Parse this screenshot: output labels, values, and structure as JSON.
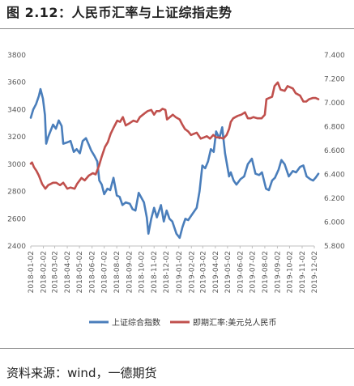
{
  "figure_title": "图 2.12：人民币汇率与上证综指走势",
  "source_note": "资料来源：wind，一德期货",
  "chart_data": {
    "type": "line",
    "title": "",
    "xlabel": "",
    "ylabel": "",
    "x_tick_labels": [
      "2018-01-02",
      "2018-02-02",
      "2018-03-02",
      "2018-04-02",
      "2018-05-02",
      "2018-06-02",
      "2018-07-02",
      "2018-08-02",
      "2018-09-02",
      "2018-10-02",
      "2018-11-02",
      "2018-12-02",
      "2019-01-02",
      "2019-02-02",
      "2019-03-02",
      "2019-04-02",
      "2019-05-02",
      "2019-06-02",
      "2019-07-02",
      "2019-08-02",
      "2019-09-02",
      "2019-10-02",
      "2019-11-02",
      "2019-12-02"
    ],
    "ylim_left": [
      2400,
      3800
    ],
    "ylim_right": [
      5.8,
      7.4
    ],
    "yticks_left": [
      "3800",
      "3600",
      "3400",
      "3200",
      "3000",
      "2800",
      "2600",
      "2400"
    ],
    "yticks_right": [
      "7.400",
      "7.200",
      "7.000",
      "6.800",
      "6.600",
      "6.400",
      "6.200",
      "6.000",
      "5.800"
    ],
    "grid": false,
    "legend_position": "bottom",
    "series": [
      {
        "name": "上证综合指数",
        "axis": "left",
        "color": "#4a7ebb",
        "points": [
          [
            "2018-01-02",
            3340
          ],
          [
            "2018-01-08",
            3400
          ],
          [
            "2018-01-15",
            3440
          ],
          [
            "2018-01-22",
            3500
          ],
          [
            "2018-01-26",
            3550
          ],
          [
            "2018-02-01",
            3480
          ],
          [
            "2018-02-06",
            3360
          ],
          [
            "2018-02-09",
            3150
          ],
          [
            "2018-02-14",
            3200
          ],
          [
            "2018-02-26",
            3290
          ],
          [
            "2018-03-05",
            3260
          ],
          [
            "2018-03-12",
            3320
          ],
          [
            "2018-03-19",
            3280
          ],
          [
            "2018-03-23",
            3150
          ],
          [
            "2018-04-02",
            3160
          ],
          [
            "2018-04-10",
            3170
          ],
          [
            "2018-04-18",
            3090
          ],
          [
            "2018-04-25",
            3110
          ],
          [
            "2018-05-03",
            3080
          ],
          [
            "2018-05-10",
            3170
          ],
          [
            "2018-05-18",
            3190
          ],
          [
            "2018-05-24",
            3150
          ],
          [
            "2018-05-31",
            3100
          ],
          [
            "2018-06-08",
            3060
          ],
          [
            "2018-06-15",
            3020
          ],
          [
            "2018-06-20",
            2880
          ],
          [
            "2018-06-26",
            2850
          ],
          [
            "2018-07-02",
            2780
          ],
          [
            "2018-07-10",
            2820
          ],
          [
            "2018-07-17",
            2810
          ],
          [
            "2018-07-25",
            2900
          ],
          [
            "2018-08-02",
            2770
          ],
          [
            "2018-08-09",
            2760
          ],
          [
            "2018-08-16",
            2700
          ],
          [
            "2018-08-24",
            2720
          ],
          [
            "2018-09-03",
            2710
          ],
          [
            "2018-09-10",
            2670
          ],
          [
            "2018-09-17",
            2660
          ],
          [
            "2018-09-25",
            2790
          ],
          [
            "2018-10-08",
            2720
          ],
          [
            "2018-10-15",
            2610
          ],
          [
            "2018-10-19",
            2490
          ],
          [
            "2018-10-26",
            2600
          ],
          [
            "2018-11-02",
            2680
          ],
          [
            "2018-11-09",
            2610
          ],
          [
            "2018-11-19",
            2700
          ],
          [
            "2018-11-26",
            2580
          ],
          [
            "2018-12-03",
            2660
          ],
          [
            "2018-12-10",
            2600
          ],
          [
            "2018-12-17",
            2580
          ],
          [
            "2018-12-27",
            2490
          ],
          [
            "2019-01-04",
            2460
          ],
          [
            "2019-01-11",
            2540
          ],
          [
            "2019-01-18",
            2600
          ],
          [
            "2019-01-25",
            2590
          ],
          [
            "2019-02-01",
            2620
          ],
          [
            "2019-02-15",
            2680
          ],
          [
            "2019-02-22",
            2800
          ],
          [
            "2019-03-01",
            2990
          ],
          [
            "2019-03-08",
            2970
          ],
          [
            "2019-03-15",
            3020
          ],
          [
            "2019-03-22",
            3110
          ],
          [
            "2019-03-29",
            3090
          ],
          [
            "2019-04-04",
            3240
          ],
          [
            "2019-04-12",
            3190
          ],
          [
            "2019-04-19",
            3270
          ],
          [
            "2019-04-26",
            3080
          ],
          [
            "2019-05-06",
            2910
          ],
          [
            "2019-05-10",
            2940
          ],
          [
            "2019-05-17",
            2880
          ],
          [
            "2019-05-24",
            2850
          ],
          [
            "2019-06-03",
            2890
          ],
          [
            "2019-06-12",
            2910
          ],
          [
            "2019-06-21",
            3000
          ],
          [
            "2019-07-01",
            3040
          ],
          [
            "2019-07-10",
            2930
          ],
          [
            "2019-07-19",
            2920
          ],
          [
            "2019-07-26",
            2940
          ],
          [
            "2019-08-05",
            2820
          ],
          [
            "2019-08-12",
            2810
          ],
          [
            "2019-08-20",
            2880
          ],
          [
            "2019-08-27",
            2900
          ],
          [
            "2019-09-05",
            2960
          ],
          [
            "2019-09-12",
            3030
          ],
          [
            "2019-09-20",
            3000
          ],
          [
            "2019-09-30",
            2910
          ],
          [
            "2019-10-10",
            2950
          ],
          [
            "2019-10-18",
            2940
          ],
          [
            "2019-10-28",
            2980
          ],
          [
            "2019-11-05",
            2990
          ],
          [
            "2019-11-13",
            2910
          ],
          [
            "2019-11-22",
            2890
          ],
          [
            "2019-11-29",
            2880
          ],
          [
            "2019-12-05",
            2900
          ],
          [
            "2019-12-12",
            2930
          ]
        ]
      },
      {
        "name": "即期汇率:美元兑人民币",
        "axis": "right",
        "color": "#c0504d",
        "points": [
          [
            "2018-01-02",
            6.49
          ],
          [
            "2018-01-05",
            6.5
          ],
          [
            "2018-01-10",
            6.46
          ],
          [
            "2018-01-16",
            6.43
          ],
          [
            "2018-01-22",
            6.39
          ],
          [
            "2018-01-30",
            6.32
          ],
          [
            "2018-02-07",
            6.28
          ],
          [
            "2018-02-14",
            6.31
          ],
          [
            "2018-02-26",
            6.33
          ],
          [
            "2018-03-06",
            6.33
          ],
          [
            "2018-03-15",
            6.31
          ],
          [
            "2018-03-23",
            6.33
          ],
          [
            "2018-04-02",
            6.28
          ],
          [
            "2018-04-10",
            6.29
          ],
          [
            "2018-04-20",
            6.28
          ],
          [
            "2018-04-26",
            6.32
          ],
          [
            "2018-05-07",
            6.37
          ],
          [
            "2018-05-15",
            6.35
          ],
          [
            "2018-05-25",
            6.39
          ],
          [
            "2018-06-04",
            6.41
          ],
          [
            "2018-06-11",
            6.4
          ],
          [
            "2018-06-19",
            6.47
          ],
          [
            "2018-06-26",
            6.55
          ],
          [
            "2018-07-04",
            6.63
          ],
          [
            "2018-07-11",
            6.67
          ],
          [
            "2018-07-18",
            6.74
          ],
          [
            "2018-07-25",
            6.79
          ],
          [
            "2018-08-03",
            6.85
          ],
          [
            "2018-08-10",
            6.84
          ],
          [
            "2018-08-17",
            6.88
          ],
          [
            "2018-08-24",
            6.81
          ],
          [
            "2018-09-03",
            6.83
          ],
          [
            "2018-09-12",
            6.85
          ],
          [
            "2018-09-21",
            6.84
          ],
          [
            "2018-09-28",
            6.88
          ],
          [
            "2018-10-09",
            6.91
          ],
          [
            "2018-10-17",
            6.93
          ],
          [
            "2018-10-26",
            6.94
          ],
          [
            "2018-11-02",
            6.9
          ],
          [
            "2018-11-08",
            6.93
          ],
          [
            "2018-11-16",
            6.93
          ],
          [
            "2018-11-23",
            6.95
          ],
          [
            "2018-11-30",
            6.94
          ],
          [
            "2018-12-04",
            6.86
          ],
          [
            "2018-12-11",
            6.88
          ],
          [
            "2018-12-18",
            6.9
          ],
          [
            "2018-12-25",
            6.88
          ],
          [
            "2019-01-04",
            6.86
          ],
          [
            "2019-01-10",
            6.82
          ],
          [
            "2019-01-17",
            6.78
          ],
          [
            "2019-01-25",
            6.76
          ],
          [
            "2019-02-01",
            6.73
          ],
          [
            "2019-02-15",
            6.75
          ],
          [
            "2019-02-25",
            6.7
          ],
          [
            "2019-03-05",
            6.71
          ],
          [
            "2019-03-12",
            6.72
          ],
          [
            "2019-03-20",
            6.7
          ],
          [
            "2019-03-28",
            6.73
          ],
          [
            "2019-04-04",
            6.71
          ],
          [
            "2019-04-12",
            6.71
          ],
          [
            "2019-04-22",
            6.7
          ],
          [
            "2019-04-30",
            6.73
          ],
          [
            "2019-05-06",
            6.78
          ],
          [
            "2019-05-10",
            6.84
          ],
          [
            "2019-05-16",
            6.87
          ],
          [
            "2019-05-27",
            6.89
          ],
          [
            "2019-06-05",
            6.9
          ],
          [
            "2019-06-14",
            6.92
          ],
          [
            "2019-06-21",
            6.87
          ],
          [
            "2019-06-28",
            6.87
          ],
          [
            "2019-07-05",
            6.88
          ],
          [
            "2019-07-15",
            6.87
          ],
          [
            "2019-07-25",
            6.87
          ],
          [
            "2019-08-02",
            6.9
          ],
          [
            "2019-08-06",
            7.03
          ],
          [
            "2019-08-13",
            7.04
          ],
          [
            "2019-08-20",
            7.05
          ],
          [
            "2019-08-26",
            7.14
          ],
          [
            "2019-09-03",
            7.17
          ],
          [
            "2019-09-10",
            7.11
          ],
          [
            "2019-09-20",
            7.1
          ],
          [
            "2019-09-27",
            7.14
          ],
          [
            "2019-10-10",
            7.12
          ],
          [
            "2019-10-17",
            7.08
          ],
          [
            "2019-10-28",
            7.06
          ],
          [
            "2019-11-05",
            7.01
          ],
          [
            "2019-11-12",
            7.01
          ],
          [
            "2019-11-19",
            7.03
          ],
          [
            "2019-11-28",
            7.04
          ],
          [
            "2019-12-05",
            7.04
          ],
          [
            "2019-12-12",
            7.03
          ]
        ]
      }
    ]
  }
}
